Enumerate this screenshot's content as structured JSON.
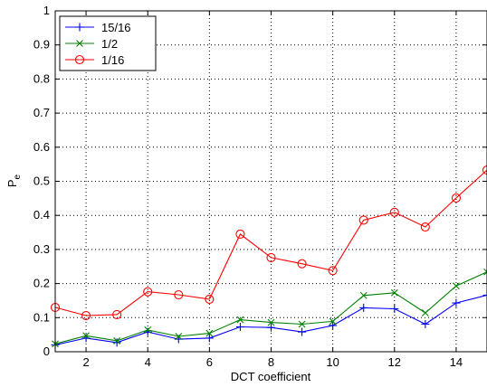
{
  "chart_data": {
    "type": "line",
    "title": "",
    "xlabel": "DCT coefficient",
    "ylabel": "P",
    "ylabel_subscript": "e",
    "xlim": [
      1,
      15
    ],
    "ylim": [
      0,
      1
    ],
    "xticks": [
      2,
      4,
      6,
      8,
      10,
      12,
      14
    ],
    "yticks": [
      0,
      0.1,
      0.2,
      0.3,
      0.4,
      0.5,
      0.6,
      0.7,
      0.8,
      0.9,
      1
    ],
    "ytick_labels": [
      "0",
      "0.1",
      "0.2",
      "0.3",
      "0.4",
      "0.5",
      "0.6",
      "0.7",
      "0.8",
      "0.9",
      "1"
    ],
    "grid": true,
    "legend_position": "top-left",
    "x": [
      1,
      2,
      3,
      4,
      5,
      6,
      7,
      8,
      9,
      10,
      11,
      12,
      13,
      14,
      15
    ],
    "series": [
      {
        "name": "15/16",
        "color": "#0000ff",
        "marker": "plus",
        "values": [
          0.02,
          0.04,
          0.027,
          0.058,
          0.037,
          0.04,
          0.073,
          0.071,
          0.058,
          0.077,
          0.129,
          0.126,
          0.081,
          0.143,
          0.166
        ]
      },
      {
        "name": "1/2",
        "color": "#008000",
        "marker": "x",
        "values": [
          0.023,
          0.047,
          0.032,
          0.064,
          0.045,
          0.054,
          0.094,
          0.086,
          0.081,
          0.089,
          0.165,
          0.173,
          0.114,
          0.193,
          0.234
        ]
      },
      {
        "name": "1/16",
        "color": "#ff0000",
        "marker": "circle",
        "values": [
          0.13,
          0.106,
          0.109,
          0.176,
          0.167,
          0.154,
          0.345,
          0.276,
          0.258,
          0.238,
          0.386,
          0.409,
          0.366,
          0.451,
          0.533
        ]
      }
    ]
  }
}
